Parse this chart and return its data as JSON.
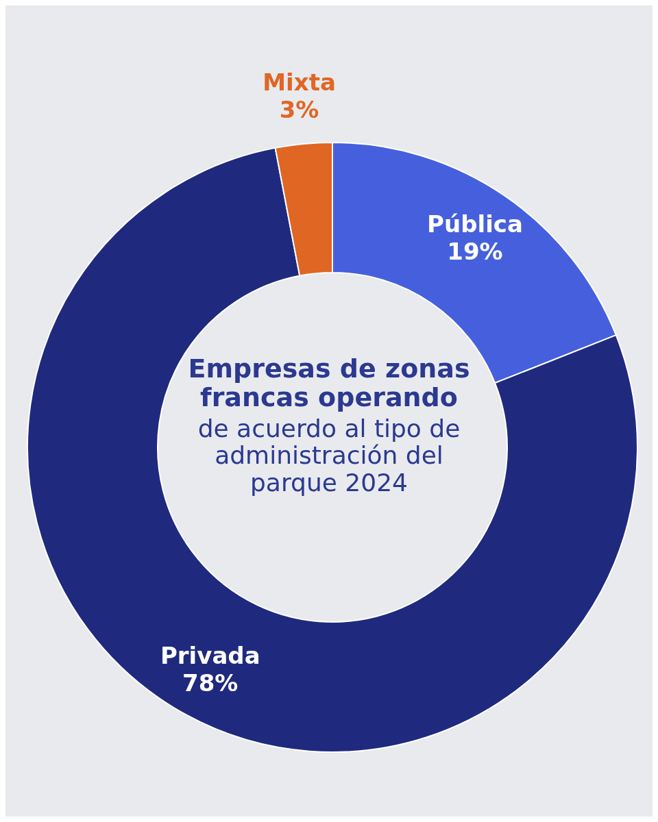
{
  "chart_data": {
    "type": "donut",
    "title": "Empresas de zonas francas operando",
    "subtitle": "de acuerdo al tipo de administración del parque 2024",
    "categories": [
      "Pública",
      "Privada",
      "Mixta"
    ],
    "values": [
      19,
      78,
      3
    ],
    "value_labels": [
      "19%",
      "78%",
      "3%"
    ],
    "colors": [
      "#4660dd",
      "#1f2a7e",
      "#e06624"
    ],
    "legend": false
  }
}
